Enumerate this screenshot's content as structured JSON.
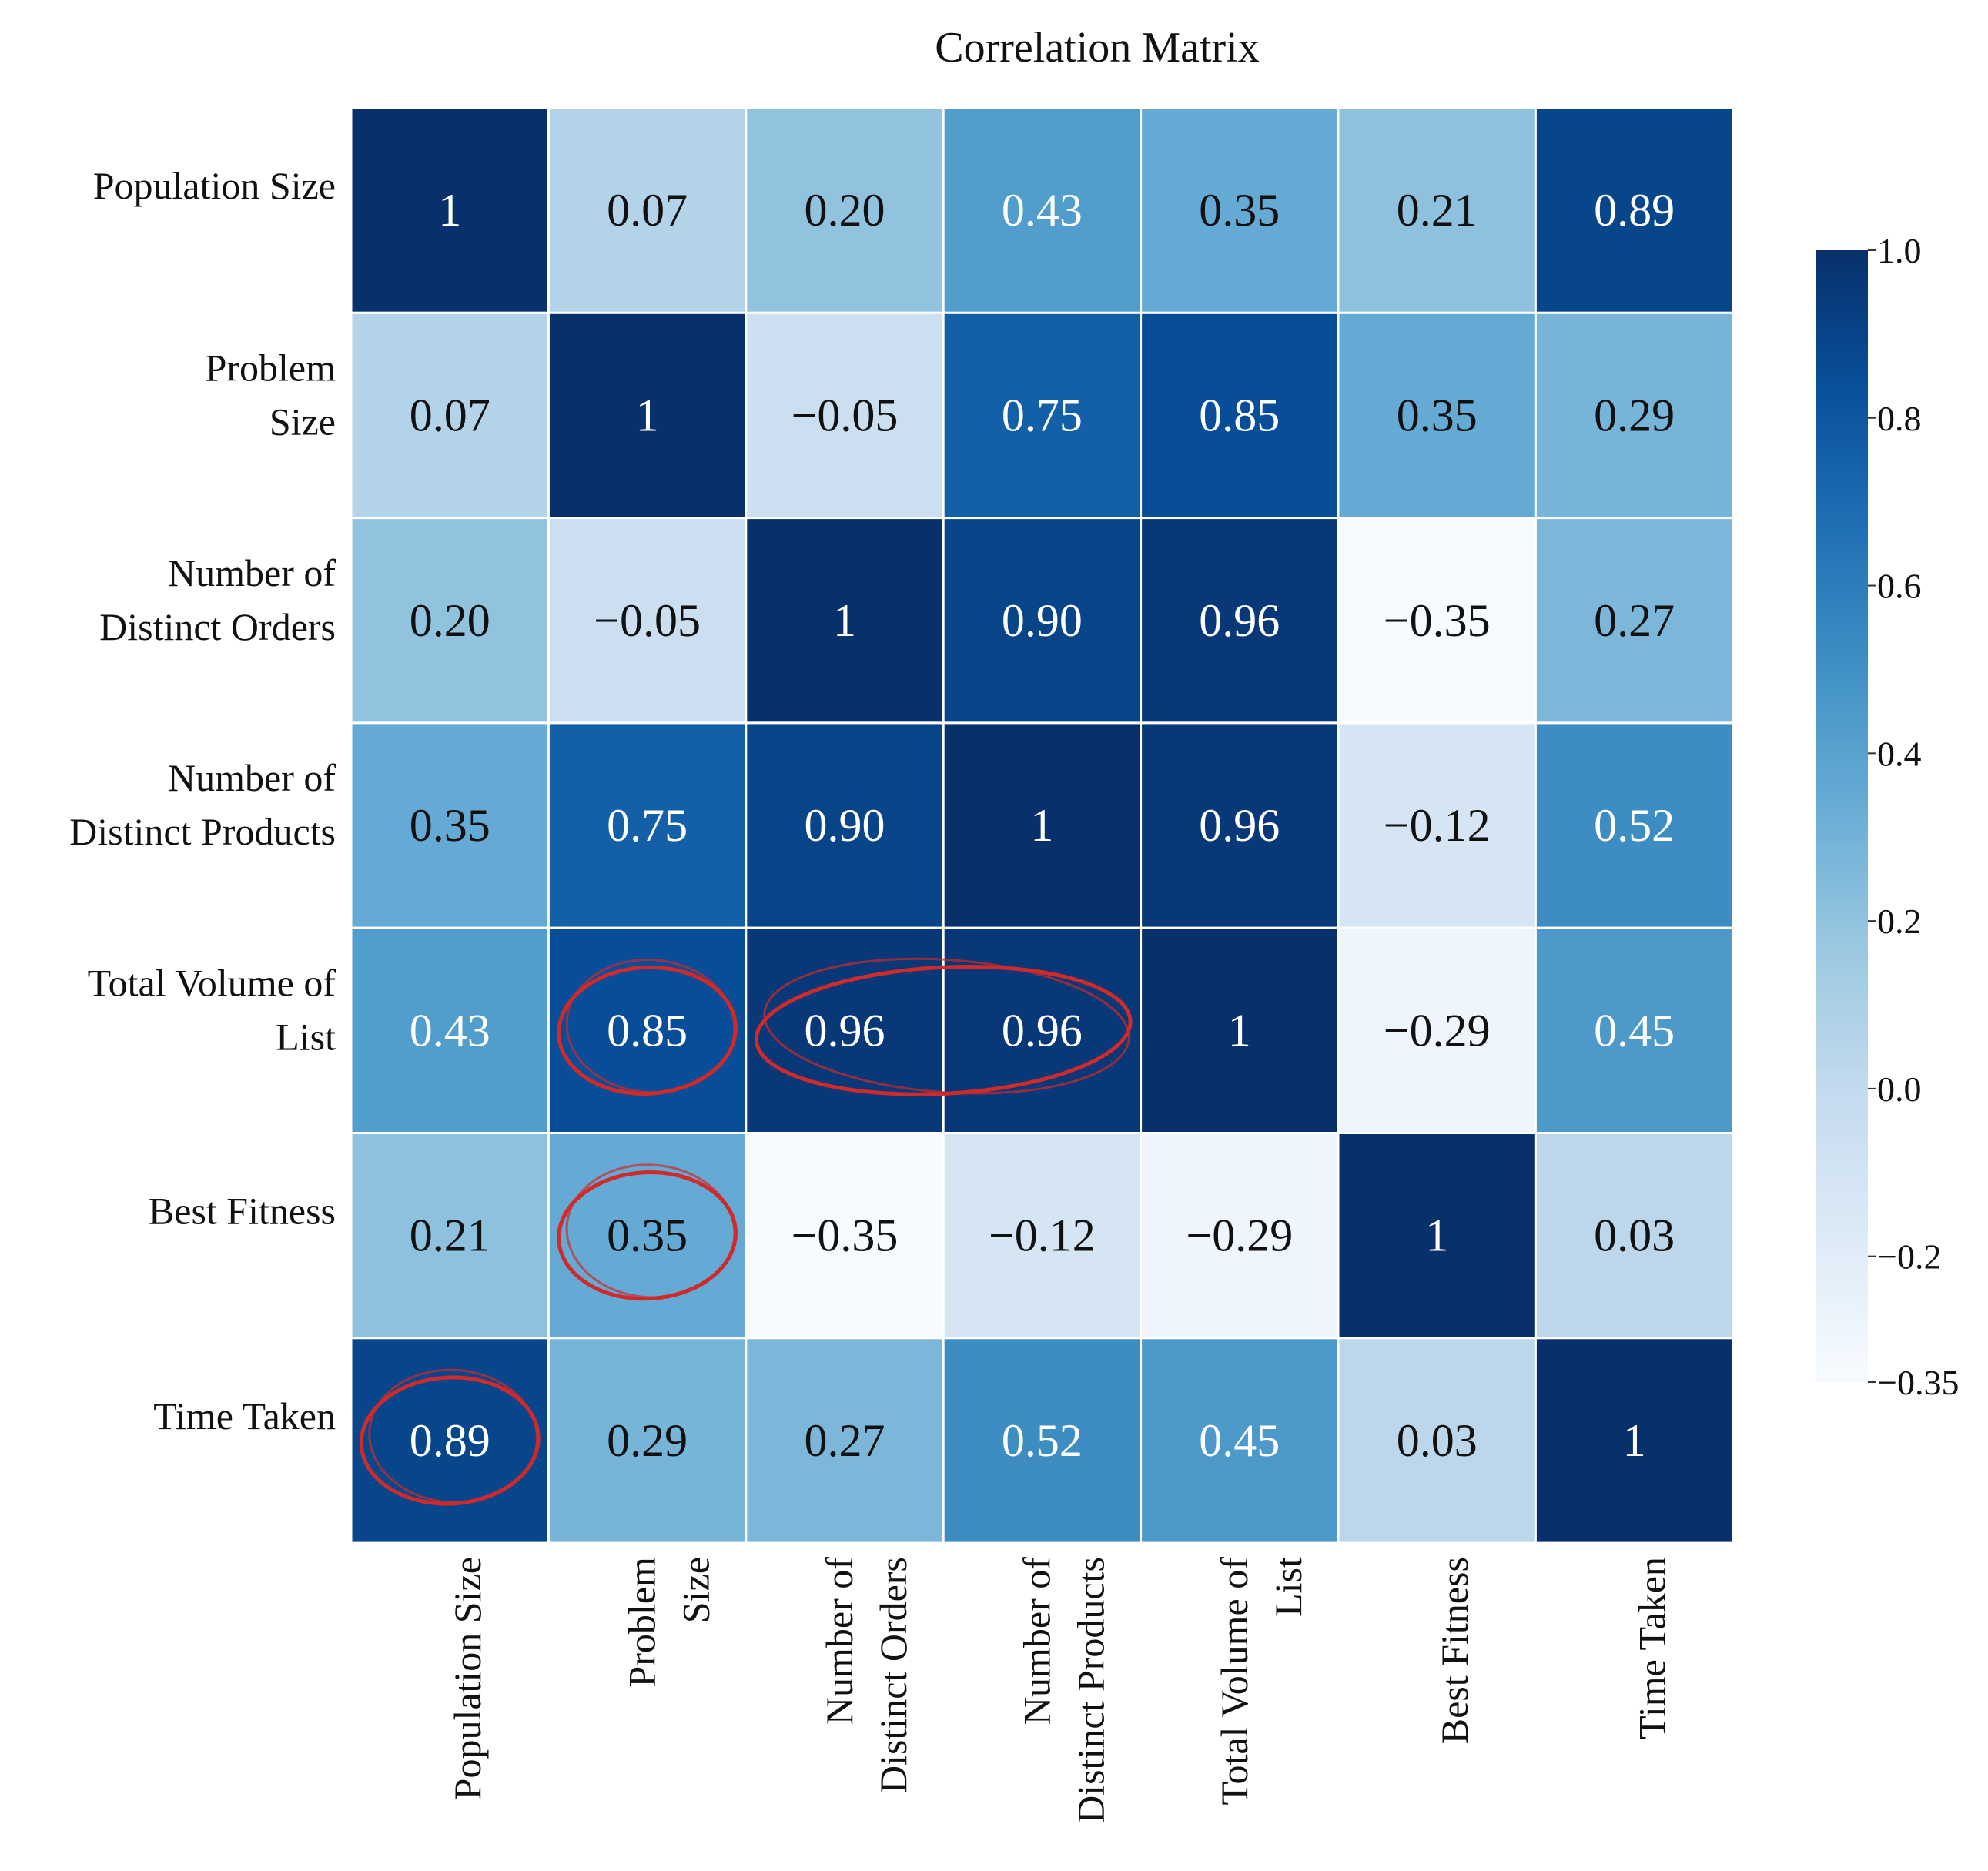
{
  "chart_data": {
    "type": "heatmap",
    "title": "Correlation Matrix",
    "row_labels": [
      [
        "Population Size"
      ],
      [
        "Problem",
        "Size"
      ],
      [
        "Number of",
        "Distinct Orders"
      ],
      [
        "Number of",
        "Distinct Products"
      ],
      [
        "Total Volume of",
        "List"
      ],
      [
        "Best Fitness"
      ],
      [
        "Time Taken"
      ]
    ],
    "col_labels": [
      [
        "Population Size"
      ],
      [
        "Problem",
        "Size"
      ],
      [
        "Number of",
        "Distinct Orders"
      ],
      [
        "Number of",
        "Distinct Products"
      ],
      [
        "Total Volume of",
        "List"
      ],
      [
        "Best Fitness"
      ],
      [
        "Time Taken"
      ]
    ],
    "values": [
      [
        1,
        0.07,
        0.2,
        0.43,
        0.35,
        0.21,
        0.89
      ],
      [
        0.07,
        1,
        -0.05,
        0.75,
        0.85,
        0.35,
        0.29
      ],
      [
        0.2,
        -0.05,
        1,
        0.9,
        0.96,
        -0.35,
        0.27
      ],
      [
        0.35,
        0.75,
        0.9,
        1,
        0.96,
        -0.12,
        0.52
      ],
      [
        0.43,
        0.85,
        0.96,
        0.96,
        1,
        -0.29,
        0.45
      ],
      [
        0.21,
        0.35,
        -0.35,
        -0.12,
        -0.29,
        1,
        0.03
      ],
      [
        0.89,
        0.29,
        0.27,
        0.52,
        0.45,
        0.03,
        1
      ]
    ],
    "cell_text": [
      [
        "1",
        "0.07",
        "0.20",
        "0.43",
        "0.35",
        "0.21",
        "0.89"
      ],
      [
        "0.07",
        "1",
        "−0.05",
        "0.75",
        "0.85",
        "0.35",
        "0.29"
      ],
      [
        "0.20",
        "−0.05",
        "1",
        "0.90",
        "0.96",
        "−0.35",
        "0.27"
      ],
      [
        "0.35",
        "0.75",
        "0.90",
        "1",
        "0.96",
        "−0.12",
        "0.52"
      ],
      [
        "0.43",
        "0.85",
        "0.96",
        "0.96",
        "1",
        "−0.29",
        "0.45"
      ],
      [
        "0.21",
        "0.35",
        "−0.35",
        "−0.12",
        "−0.29",
        "1",
        "0.03"
      ],
      [
        "0.89",
        "0.29",
        "0.27",
        "0.52",
        "0.45",
        "0.03",
        "1"
      ]
    ],
    "colorbar": {
      "min": -0.35,
      "max": 1.0,
      "ticks": [
        1.0,
        0.8,
        0.6,
        0.4,
        0.2,
        0.0,
        -0.2,
        -0.35
      ],
      "tick_labels": [
        "1.0",
        "0.8",
        "0.6",
        "0.4",
        "0.2",
        "0.0",
        "−0.2",
        "−0.35"
      ],
      "colormap": "Blues",
      "colors": [
        "#f7fbff",
        "#deebf7",
        "#c6dbef",
        "#9ecae1",
        "#6baed6",
        "#4292c6",
        "#2171b5",
        "#08519c",
        "#08306b"
      ]
    },
    "annotations": [
      {
        "type": "circle",
        "cells": [
          [
            4,
            1
          ]
        ]
      },
      {
        "type": "ellipse",
        "cells": [
          [
            4,
            2
          ],
          [
            4,
            3
          ]
        ]
      },
      {
        "type": "circle",
        "cells": [
          [
            5,
            1
          ]
        ]
      },
      {
        "type": "circle",
        "cells": [
          [
            6,
            0
          ]
        ]
      }
    ],
    "annotation_color": "#d02a2a"
  }
}
